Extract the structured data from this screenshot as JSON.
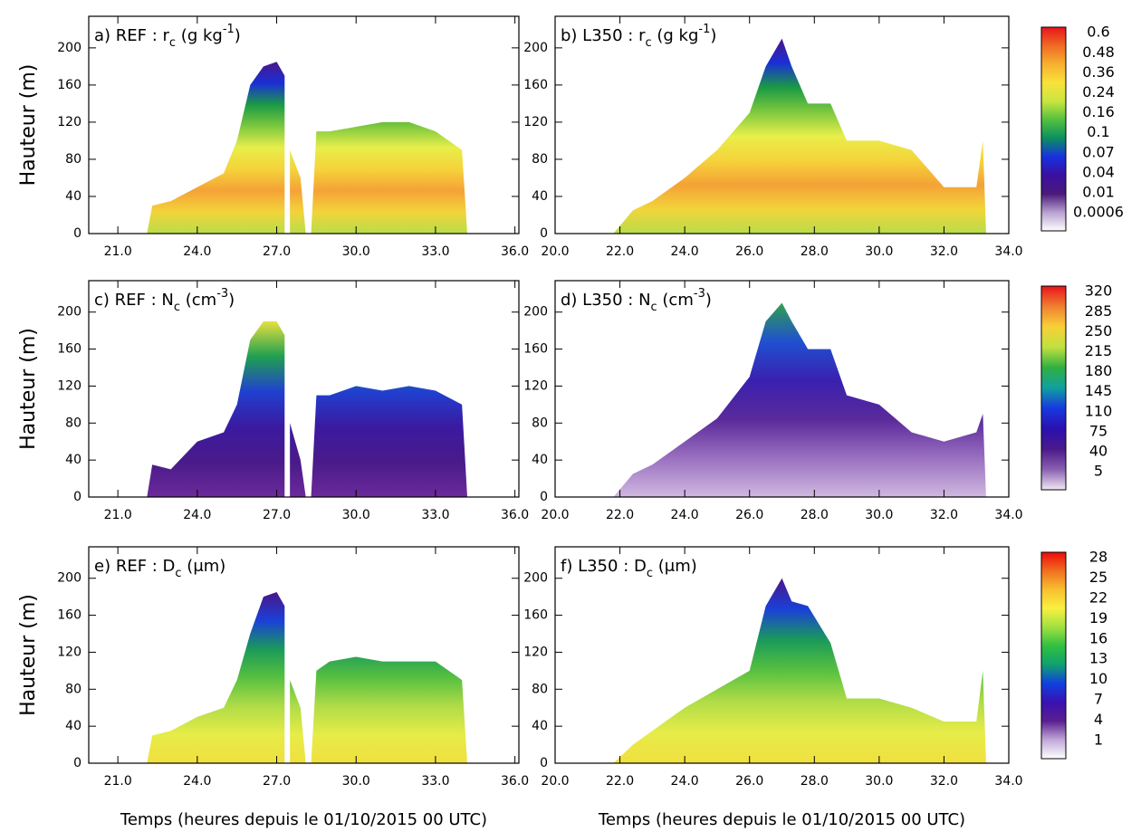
{
  "chart_data": [
    {
      "type": "area",
      "title": [
        {
          "text": "a) REF : r"
        },
        {
          "text": "c",
          "shift": "sub"
        },
        {
          "text": " (g kg"
        },
        {
          "text": "-1",
          "shift": "super"
        },
        {
          "text": ")"
        }
      ],
      "ylabel": "Hauteur (m)",
      "x": [
        22.1,
        22.3,
        23,
        24,
        25,
        25.5,
        26,
        26.5,
        27,
        27.3,
        27.4,
        27.5,
        27.9,
        28.1,
        28.2,
        28.3,
        28.5,
        29,
        30,
        31,
        32,
        33,
        34,
        34.2
      ],
      "values": [
        0,
        30,
        35,
        50,
        65,
        100,
        160,
        180,
        185,
        170,
        null,
        90,
        60,
        0,
        null,
        0,
        110,
        110,
        115,
        120,
        120,
        110,
        90,
        0
      ],
      "xlim": [
        19.9,
        36.15
      ],
      "ylim": [
        0,
        234
      ],
      "xticks": [
        {
          "value": 21,
          "label": "21.0"
        },
        {
          "value": 24,
          "label": "24.0"
        },
        {
          "value": 27,
          "label": "27.0"
        },
        {
          "value": 30,
          "label": "30.0"
        },
        {
          "value": 33,
          "label": "33.0"
        },
        {
          "value": 36,
          "label": "36.0"
        }
      ],
      "yticks": [
        0,
        40,
        80,
        120,
        160,
        200
      ],
      "colors": [
        "#b8dd4a",
        "#f2d43a",
        "#f5a236",
        "#f5d33a",
        "#e8ee4a",
        "#7cc83e",
        "#1a9a45",
        "#1a2fd6",
        "#4a168a"
      ]
    },
    {
      "type": "area",
      "title": [
        {
          "text": "b) L350 : r"
        },
        {
          "text": "c",
          "shift": "sub"
        },
        {
          "text": " (g kg"
        },
        {
          "text": "-1",
          "shift": "super"
        },
        {
          "text": ")"
        }
      ],
      "x": [
        21.8,
        22.4,
        23,
        24,
        25,
        26,
        26.5,
        27,
        27.3,
        27.8,
        28.5,
        29,
        30,
        31,
        32,
        33,
        33.2,
        33.3
      ],
      "values": [
        0,
        25,
        35,
        60,
        90,
        130,
        180,
        210,
        180,
        140,
        140,
        100,
        100,
        90,
        50,
        50,
        100,
        0
      ],
      "xlim": [
        20,
        34
      ],
      "ylim": [
        0,
        234
      ],
      "xticks": [
        {
          "value": 20,
          "label": "20.0"
        },
        {
          "value": 22,
          "label": "22.0"
        },
        {
          "value": 24,
          "label": "24.0"
        },
        {
          "value": 26,
          "label": "26.0"
        },
        {
          "value": 28,
          "label": "28.0"
        },
        {
          "value": 30,
          "label": "30.0"
        },
        {
          "value": 32,
          "label": "32.0"
        },
        {
          "value": 34,
          "label": "34.0"
        }
      ],
      "yticks": [
        0,
        40,
        80,
        120,
        160,
        200
      ],
      "colors": [
        "#b8dd4a",
        "#f2d43a",
        "#f5a236",
        "#f5d33a",
        "#e8ee4a",
        "#7cc83e",
        "#1a9a45",
        "#1a2fd6",
        "#4a168a"
      ]
    },
    {
      "type": "area",
      "title": [
        {
          "text": "c) REF : N"
        },
        {
          "text": "c",
          "shift": "sub"
        },
        {
          "text": " (cm"
        },
        {
          "text": "-3",
          "shift": "super"
        },
        {
          "text": ")"
        }
      ],
      "ylabel": "Hauteur (m)",
      "x": [
        22.1,
        22.3,
        23,
        24,
        25,
        25.5,
        26,
        26.5,
        27,
        27.3,
        27.4,
        27.5,
        27.9,
        28.1,
        28.2,
        28.3,
        28.5,
        29,
        30,
        31,
        32,
        33,
        34,
        34.2
      ],
      "values": [
        0,
        35,
        30,
        60,
        70,
        100,
        170,
        190,
        190,
        175,
        null,
        80,
        40,
        0,
        null,
        0,
        110,
        110,
        120,
        115,
        120,
        115,
        100,
        0
      ],
      "xlim": [
        19.9,
        36.15
      ],
      "ylim": [
        0,
        234
      ],
      "xticks": [
        {
          "value": 21,
          "label": "21.0"
        },
        {
          "value": 24,
          "label": "24.0"
        },
        {
          "value": 27,
          "label": "27.0"
        },
        {
          "value": 30,
          "label": "30.0"
        },
        {
          "value": 33,
          "label": "33.0"
        },
        {
          "value": 36,
          "label": "36.0"
        }
      ],
      "yticks": [
        0,
        40,
        80,
        120,
        160,
        200
      ],
      "colors": [
        "#6b2a9a",
        "#4a1a8a",
        "#3a1aa0",
        "#2040d0",
        "#20a050",
        "#e6e040"
      ]
    },
    {
      "type": "area",
      "title": [
        {
          "text": "d) L350 : N"
        },
        {
          "text": "c",
          "shift": "sub"
        },
        {
          "text": " (cm"
        },
        {
          "text": "-3",
          "shift": "super"
        },
        {
          "text": ")"
        }
      ],
      "x": [
        21.8,
        22.4,
        23,
        24,
        25,
        26,
        26.5,
        27,
        27.3,
        27.8,
        28.5,
        29,
        30,
        31,
        32,
        33,
        33.2,
        33.3
      ],
      "values": [
        0,
        25,
        35,
        60,
        85,
        130,
        190,
        210,
        190,
        160,
        160,
        110,
        100,
        70,
        60,
        70,
        90,
        0
      ],
      "xlim": [
        20,
        34
      ],
      "ylim": [
        0,
        234
      ],
      "xticks": [
        {
          "value": 20,
          "label": "20.0"
        },
        {
          "value": 22,
          "label": "22.0"
        },
        {
          "value": 24,
          "label": "24.0"
        },
        {
          "value": 26,
          "label": "26.0"
        },
        {
          "value": 28,
          "label": "28.0"
        },
        {
          "value": 30,
          "label": "30.0"
        },
        {
          "value": 32,
          "label": "32.0"
        },
        {
          "value": 34,
          "label": "34.0"
        }
      ],
      "yticks": [
        0,
        40,
        80,
        120,
        160,
        200
      ],
      "colors": [
        "#d0b8e0",
        "#9a70c0",
        "#5a2a9a",
        "#3a20b0",
        "#2050d0",
        "#30a050"
      ]
    },
    {
      "type": "area",
      "title": [
        {
          "text": "e) REF : D"
        },
        {
          "text": "c",
          "shift": "sub"
        },
        {
          "text": " (μm)"
        }
      ],
      "ylabel": "Hauteur (m)",
      "xlabel": "Temps (heures depuis le 01/10/2015 00 UTC)",
      "x": [
        22.1,
        22.3,
        23,
        24,
        25,
        25.5,
        26,
        26.5,
        27,
        27.3,
        27.4,
        27.5,
        27.9,
        28.1,
        28.2,
        28.3,
        28.5,
        29,
        30,
        31,
        32,
        33,
        34,
        34.2
      ],
      "values": [
        0,
        30,
        35,
        50,
        60,
        90,
        140,
        180,
        185,
        170,
        null,
        90,
        60,
        0,
        null,
        0,
        100,
        110,
        115,
        110,
        110,
        110,
        90,
        0
      ],
      "xlim": [
        19.9,
        36.15
      ],
      "ylim": [
        0,
        234
      ],
      "xticks": [
        {
          "value": 21,
          "label": "21.0"
        },
        {
          "value": 24,
          "label": "24.0"
        },
        {
          "value": 27,
          "label": "27.0"
        },
        {
          "value": 30,
          "label": "30.0"
        },
        {
          "value": 33,
          "label": "33.0"
        },
        {
          "value": 36,
          "label": "36.0"
        }
      ],
      "yticks": [
        0,
        40,
        80,
        120,
        160,
        200
      ],
      "colors": [
        "#f0e040",
        "#e6ec48",
        "#b0dc48",
        "#58c040",
        "#1a9a5a",
        "#1a40d8",
        "#4a168a"
      ]
    },
    {
      "type": "area",
      "title": [
        {
          "text": "f) L350 : D"
        },
        {
          "text": "c",
          "shift": "sub"
        },
        {
          "text": " (μm)"
        }
      ],
      "xlabel": "Temps (heures depuis le 01/10/2015 00 UTC)",
      "x": [
        21.8,
        22.4,
        23,
        24,
        25,
        26,
        26.5,
        27,
        27.3,
        27.8,
        28.5,
        29,
        30,
        31,
        32,
        33,
        33.2,
        33.3
      ],
      "values": [
        0,
        20,
        35,
        60,
        80,
        100,
        170,
        200,
        175,
        170,
        130,
        70,
        70,
        60,
        45,
        45,
        100,
        0
      ],
      "xlim": [
        20,
        34
      ],
      "ylim": [
        0,
        234
      ],
      "xticks": [
        {
          "value": 20,
          "label": "20.0"
        },
        {
          "value": 22,
          "label": "22.0"
        },
        {
          "value": 24,
          "label": "24.0"
        },
        {
          "value": 26,
          "label": "26.0"
        },
        {
          "value": 28,
          "label": "28.0"
        },
        {
          "value": 30,
          "label": "30.0"
        },
        {
          "value": 32,
          "label": "32.0"
        },
        {
          "value": 34,
          "label": "34.0"
        }
      ],
      "yticks": [
        0,
        40,
        80,
        120,
        160,
        200
      ],
      "colors": [
        "#f0e040",
        "#e6ec48",
        "#b0dc48",
        "#58c040",
        "#1a9a5a",
        "#1a40d8",
        "#4a168a"
      ]
    },
    {
      "type": "colorbar",
      "levels": [
        0.6,
        0.48,
        0.36,
        0.24,
        0.16,
        0.1,
        0.07,
        0.04,
        0.01,
        0.0006
      ],
      "colors": [
        "#e8141c",
        "#f06a24",
        "#f7b030",
        "#f8e23a",
        "#c9e540",
        "#52c040",
        "#0a9060",
        "#1830e0",
        "#3a10a0",
        "#4a1a7a",
        "#b8a0d0",
        "#ffffff"
      ]
    },
    {
      "type": "colorbar",
      "levels": [
        320,
        285,
        250,
        215,
        180,
        145,
        110,
        75,
        40,
        5
      ],
      "colors": [
        "#e8141c",
        "#f08030",
        "#f8d038",
        "#c0e040",
        "#30b040",
        "#10a0a0",
        "#1838e0",
        "#2a10b0",
        "#4a1a8a",
        "#8a60b0",
        "#f0e8f4"
      ]
    },
    {
      "type": "colorbar",
      "levels": [
        28,
        25,
        22,
        19,
        16,
        13,
        10,
        7,
        4,
        1
      ],
      "colors": [
        "#ee0a0a",
        "#f07020",
        "#f8c030",
        "#f8f040",
        "#a0e040",
        "#30c040",
        "#10a070",
        "#1040e0",
        "#3a10b0",
        "#5a2090",
        "#c0a8d8",
        "#ffffff"
      ]
    }
  ]
}
